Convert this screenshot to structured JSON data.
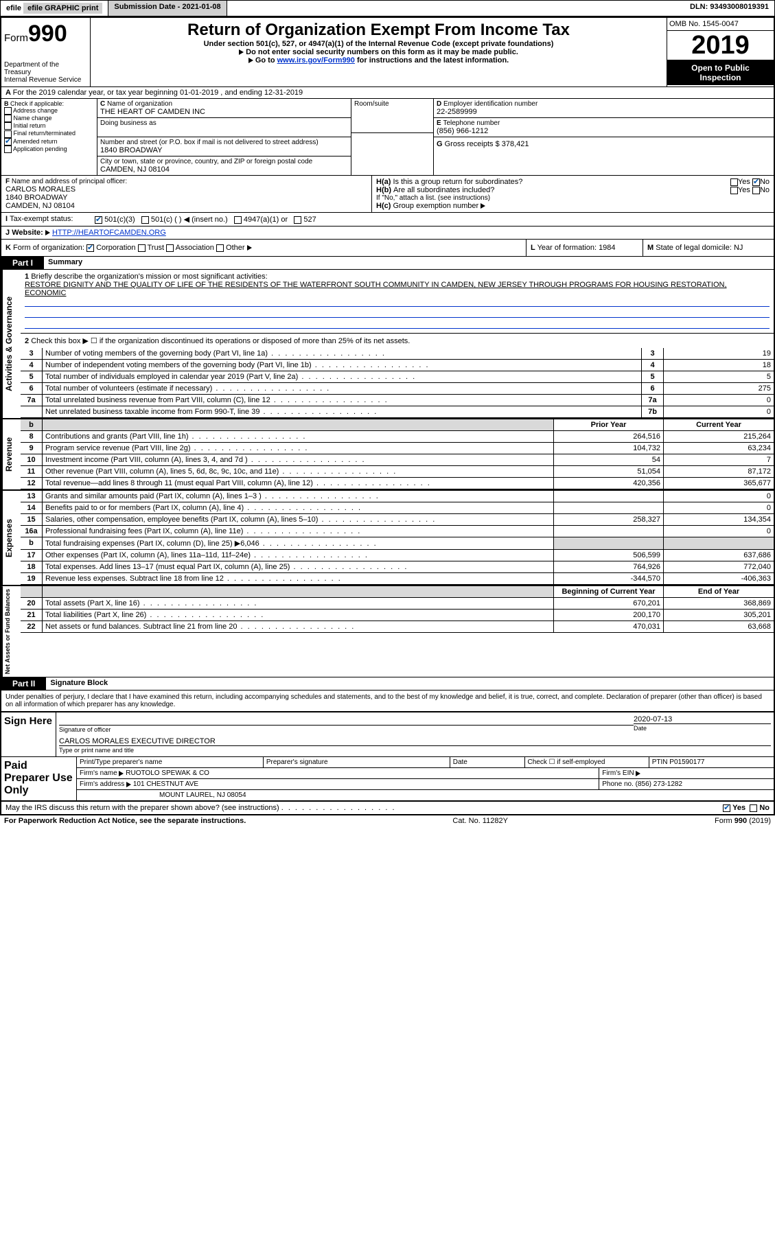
{
  "topbar": {
    "efile": "efile GRAPHIC print",
    "sub_label": "Submission Date - 2021-01-08",
    "dln": "DLN: 93493008019391"
  },
  "header": {
    "form_word": "Form",
    "form_num": "990",
    "dept": "Department of the Treasury",
    "irs": "Internal Revenue Service",
    "title": "Return of Organization Exempt From Income Tax",
    "sub1": "Under section 501(c), 527, or 4947(a)(1) of the Internal Revenue Code (except private foundations)",
    "sub2": "Do not enter social security numbers on this form as it may be made public.",
    "sub3_pre": "Go to ",
    "sub3_link": "www.irs.gov/Form990",
    "sub3_post": " for instructions and the latest information.",
    "omb": "OMB No. 1545-0047",
    "year": "2019",
    "opi": "Open to Public Inspection"
  },
  "rowA": "For the 2019 calendar year, or tax year beginning 01-01-2019    , and ending 12-31-2019",
  "B": {
    "label": "Check if applicable:",
    "items": [
      "Address change",
      "Name change",
      "Initial return",
      "Final return/terminated",
      "Amended return",
      "Application pending"
    ]
  },
  "C": {
    "name_lbl": "Name of organization",
    "name": "THE HEART OF CAMDEN INC",
    "dba_lbl": "Doing business as",
    "street_lbl": "Number and street (or P.O. box if mail is not delivered to street address)",
    "room_lbl": "Room/suite",
    "street": "1840 BROADWAY",
    "city_lbl": "City or town, state or province, country, and ZIP or foreign postal code",
    "city": "CAMDEN, NJ  08104"
  },
  "D": {
    "lbl": "Employer identification number",
    "val": "22-2589999"
  },
  "E": {
    "lbl": "Telephone number",
    "val": "(856) 966-1212"
  },
  "G": {
    "lbl": "Gross receipts $",
    "val": "378,421"
  },
  "F": {
    "lbl": "Name and address of principal officer:",
    "name": "CARLOS MORALES",
    "street": "1840 BROADWAY",
    "city": "CAMDEN, NJ  08104"
  },
  "H": {
    "a": "Is this a group return for subordinates?",
    "b": "Are all subordinates included?",
    "b_note": "If \"No,\" attach a list. (see instructions)",
    "c": "Group exemption number",
    "yes": "Yes",
    "no": "No"
  },
  "I": {
    "lbl": "Tax-exempt status:",
    "opts": [
      "501(c)(3)",
      "501(c) (  ) ◀ (insert no.)",
      "4947(a)(1) or",
      "527"
    ]
  },
  "J": {
    "lbl": "Website:",
    "val": "HTTP://HEARTOFCAMDEN.ORG"
  },
  "K": {
    "lbl": "Form of organization:",
    "opts": [
      "Corporation",
      "Trust",
      "Association",
      "Other"
    ]
  },
  "L": {
    "lbl": "Year of formation:",
    "val": "1984"
  },
  "M": {
    "lbl": "State of legal domicile:",
    "val": "NJ"
  },
  "part1": {
    "hdr": "Part I",
    "title": "Summary",
    "q1_lbl": "Briefly describe the organization's mission or most significant activities:",
    "q1_txt": "RESTORE DIGNITY AND THE QUALITY OF LIFE OF THE RESIDENTS OF THE WATERFRONT SOUTH COMMUNITY IN CAMDEN, NEW JERSEY THROUGH PROGRAMS FOR HOUSING RESTORATION, ECONOMIC",
    "q2": "Check this box ▶ ☐  if the organization discontinued its operations or disposed of more than 25% of its net assets.",
    "sides": {
      "ag": "Activities & Governance",
      "rev": "Revenue",
      "exp": "Expenses",
      "na": "Net Assets or Fund Balances"
    },
    "cols": {
      "py": "Prior Year",
      "cy": "Current Year",
      "bcy": "Beginning of Current Year",
      "eoy": "End of Year"
    }
  },
  "ag_lines": [
    {
      "n": "3",
      "t": "Number of voting members of the governing body (Part VI, line 1a)",
      "bn": "3",
      "v": "19"
    },
    {
      "n": "4",
      "t": "Number of independent voting members of the governing body (Part VI, line 1b)",
      "bn": "4",
      "v": "18"
    },
    {
      "n": "5",
      "t": "Total number of individuals employed in calendar year 2019 (Part V, line 2a)",
      "bn": "5",
      "v": "5"
    },
    {
      "n": "6",
      "t": "Total number of volunteers (estimate if necessary)",
      "bn": "6",
      "v": "275"
    },
    {
      "n": "7a",
      "t": "Total unrelated business revenue from Part VIII, column (C), line 12",
      "bn": "7a",
      "v": "0"
    },
    {
      "n": "",
      "t": "Net unrelated business taxable income from Form 990-T, line 39",
      "bn": "7b",
      "v": "0"
    }
  ],
  "rev_lines": [
    {
      "n": "8",
      "t": "Contributions and grants (Part VIII, line 1h)",
      "py": "264,516",
      "cy": "215,264"
    },
    {
      "n": "9",
      "t": "Program service revenue (Part VIII, line 2g)",
      "py": "104,732",
      "cy": "63,234"
    },
    {
      "n": "10",
      "t": "Investment income (Part VIII, column (A), lines 3, 4, and 7d )",
      "py": "54",
      "cy": "7"
    },
    {
      "n": "11",
      "t": "Other revenue (Part VIII, column (A), lines 5, 6d, 8c, 9c, 10c, and 11e)",
      "py": "51,054",
      "cy": "87,172"
    },
    {
      "n": "12",
      "t": "Total revenue—add lines 8 through 11 (must equal Part VIII, column (A), line 12)",
      "py": "420,356",
      "cy": "365,677"
    }
  ],
  "exp_lines": [
    {
      "n": "13",
      "t": "Grants and similar amounts paid (Part IX, column (A), lines 1–3 )",
      "py": "",
      "cy": "0"
    },
    {
      "n": "14",
      "t": "Benefits paid to or for members (Part IX, column (A), line 4)",
      "py": "",
      "cy": "0"
    },
    {
      "n": "15",
      "t": "Salaries, other compensation, employee benefits (Part IX, column (A), lines 5–10)",
      "py": "258,327",
      "cy": "134,354"
    },
    {
      "n": "16a",
      "t": "Professional fundraising fees (Part IX, column (A), line 11e)",
      "py": "",
      "cy": "0"
    },
    {
      "n": "b",
      "t": "Total fundraising expenses (Part IX, column (D), line 25) ▶6,046",
      "py": "SHADE",
      "cy": "SHADE"
    },
    {
      "n": "17",
      "t": "Other expenses (Part IX, column (A), lines 11a–11d, 11f–24e)",
      "py": "506,599",
      "cy": "637,686"
    },
    {
      "n": "18",
      "t": "Total expenses. Add lines 13–17 (must equal Part IX, column (A), line 25)",
      "py": "764,926",
      "cy": "772,040"
    },
    {
      "n": "19",
      "t": "Revenue less expenses. Subtract line 18 from line 12",
      "py": "-344,570",
      "cy": "-406,363"
    }
  ],
  "na_lines": [
    {
      "n": "20",
      "t": "Total assets (Part X, line 16)",
      "py": "670,201",
      "cy": "368,869"
    },
    {
      "n": "21",
      "t": "Total liabilities (Part X, line 26)",
      "py": "200,170",
      "cy": "305,201"
    },
    {
      "n": "22",
      "t": "Net assets or fund balances. Subtract line 21 from line 20",
      "py": "470,031",
      "cy": "63,668"
    }
  ],
  "part2": {
    "hdr": "Part II",
    "title": "Signature Block",
    "decl": "Under penalties of perjury, I declare that I have examined this return, including accompanying schedules and statements, and to the best of my knowledge and belief, it is true, correct, and complete. Declaration of preparer (other than officer) is based on all information of which preparer has any knowledge."
  },
  "sign": {
    "here": "Sign Here",
    "sig_lbl": "Signature of officer",
    "date_lbl": "Date",
    "date": "2020-07-13",
    "name": "CARLOS MORALES  EXECUTIVE DIRECTOR",
    "name_lbl": "Type or print name and title"
  },
  "prep": {
    "title": "Paid Preparer Use Only",
    "r1": [
      "Print/Type preparer's name",
      "Preparer's signature",
      "Date",
      "Check ☐ if self-employed",
      "PTIN P01590177"
    ],
    "firm_lbl": "Firm's name",
    "firm": "RUOTOLO SPEWAK & CO",
    "ein_lbl": "Firm's EIN",
    "addr_lbl": "Firm's address",
    "addr1": "101 CHESTNUT AVE",
    "addr2": "MOUNT LAUREL, NJ  08054",
    "phone_lbl": "Phone no.",
    "phone": "(856) 273-1282",
    "discuss": "May the IRS discuss this return with the preparer shown above? (see instructions)"
  },
  "footer": {
    "left": "For Paperwork Reduction Act Notice, see the separate instructions.",
    "mid": "Cat. No. 11282Y",
    "right": "Form 990 (2019)"
  }
}
